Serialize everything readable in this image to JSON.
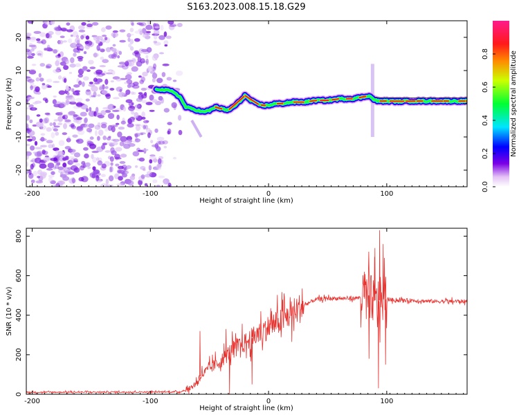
{
  "title": "S163.2023.008.15.18.G29",
  "chart_data": [
    {
      "type": "heatmap",
      "name": "spectrogram",
      "xlabel": "Height of straight line (km)",
      "ylabel": "Frequency (Hz)",
      "xlim": [
        -205,
        168
      ],
      "ylim": [
        -25,
        25
      ],
      "xticks": [
        -200,
        -100,
        0,
        100
      ],
      "yticks": [
        -20,
        -10,
        0,
        10,
        20
      ],
      "ridge": {
        "x": [
          -95,
          -90,
          -85,
          -80,
          -75,
          -70,
          -65,
          -60,
          -55,
          -50,
          -45,
          -40,
          -35,
          -30,
          -25,
          -20,
          -15,
          -10,
          -5,
          0,
          5,
          10,
          20,
          30,
          40,
          50,
          60,
          70,
          80,
          85,
          88,
          92,
          100,
          110,
          120,
          140,
          168
        ],
        "y": [
          4.5,
          4.2,
          4.0,
          3.5,
          2.0,
          -1.0,
          -1.5,
          -2.0,
          -2.5,
          -2.0,
          -1.0,
          -1.5,
          -2.0,
          -1.0,
          0.5,
          2.5,
          1.0,
          0.0,
          -0.5,
          -0.5,
          0.0,
          0.0,
          0.5,
          0.5,
          1.0,
          1.0,
          1.5,
          1.5,
          2.0,
          2.5,
          1.5,
          0.8,
          0.8,
          0.7,
          0.8,
          0.8,
          0.8
        ]
      },
      "noise_region_x": [
        -205,
        -80
      ],
      "colorbar": {
        "label": "Normalized spectral amplitude",
        "range": [
          0,
          1
        ],
        "ticks": [
          0.0,
          0.2,
          0.4,
          0.6,
          0.8
        ],
        "tick_labels": [
          "0.0",
          "0.2",
          "0.4",
          "0.6",
          "0.8"
        ]
      }
    },
    {
      "type": "line",
      "name": "snr",
      "xlabel": "Height of straight line (km)",
      "ylabel": "SNR (10 * v/v)",
      "xlim": [
        -205,
        168
      ],
      "ylim": [
        0,
        840
      ],
      "xticks": [
        -200,
        -100,
        0,
        100
      ],
      "yticks": [
        0,
        200,
        400,
        600,
        800
      ],
      "color": "#e8302d",
      "envelope": {
        "x": [
          -205,
          -75,
          -68,
          -62,
          -58,
          -50,
          -40,
          -30,
          -20,
          -10,
          0,
          10,
          20,
          30,
          40,
          50,
          60,
          70,
          80,
          85,
          88,
          92,
          96,
          100,
          110,
          120,
          140,
          168
        ],
        "y": [
          10,
          12,
          25,
          50,
          90,
          130,
          170,
          230,
          260,
          300,
          340,
          370,
          410,
          450,
          480,
          485,
          485,
          485,
          490,
          500,
          480,
          470,
          480,
          480,
          475,
          475,
          470,
          470
        ]
      },
      "spikes": [
        {
          "x": -58,
          "y": 320
        },
        {
          "x": -36,
          "y": 330
        },
        {
          "x": -33,
          "y": 0
        },
        {
          "x": -14,
          "y": 50
        },
        {
          "x": 81,
          "y": 620
        },
        {
          "x": 85,
          "y": 180
        },
        {
          "x": 90,
          "y": 740
        },
        {
          "x": 93,
          "y": 30
        },
        {
          "x": 94,
          "y": 830
        },
        {
          "x": 97,
          "y": 760
        },
        {
          "x": 99,
          "y": 150
        }
      ]
    }
  ]
}
